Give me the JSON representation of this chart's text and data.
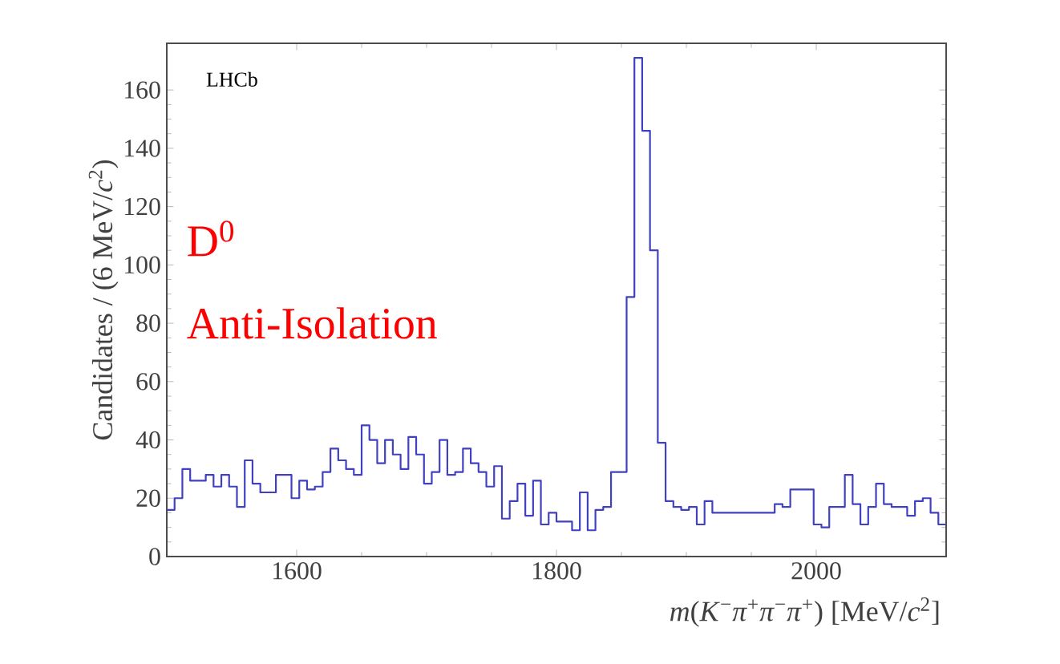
{
  "chart_data": {
    "type": "histogram",
    "xlabel": "*m*(*K*$^{−}$*π*$^{+}$*π*$^{−}$*π*$^{+}$) [MeV/*c*$^{2}$]",
    "ylabel": "Candidates / (6 MeV/*c*$^{2}$)",
    "annotations": [
      "LHCb",
      "D$^{0}$",
      "Anti-Isolation"
    ],
    "color": "#4040c0",
    "bins": [
      1500,
      1506,
      1512,
      1518,
      1524,
      1530,
      1536,
      1542,
      1548,
      1554,
      1560,
      1566,
      1572,
      1578,
      1584,
      1590,
      1596,
      1602,
      1608,
      1614,
      1620,
      1626,
      1632,
      1638,
      1644,
      1650,
      1656,
      1662,
      1668,
      1674,
      1680,
      1686,
      1692,
      1698,
      1704,
      1710,
      1716,
      1722,
      1728,
      1734,
      1740,
      1746,
      1752,
      1758,
      1764,
      1770,
      1776,
      1782,
      1788,
      1794,
      1800,
      1806,
      1812,
      1818,
      1824,
      1830,
      1836,
      1842,
      1848,
      1854,
      1860,
      1866,
      1872,
      1878,
      1884,
      1890,
      1896,
      1902,
      1908,
      1914,
      1920,
      1926,
      1932,
      1938,
      1944,
      1950,
      1956,
      1962,
      1968,
      1974,
      1980,
      1986,
      1992,
      1998,
      2004,
      2010,
      2016,
      2022,
      2028,
      2034,
      2040,
      2046,
      2052,
      2058,
      2064,
      2070,
      2076,
      2082,
      2088,
      2094,
      2100
    ],
    "values": [
      16,
      20,
      30,
      26,
      26,
      28,
      24,
      28,
      24,
      17,
      33,
      25,
      22,
      22,
      28,
      28,
      20,
      26,
      23,
      24,
      29,
      37,
      33,
      30,
      28,
      45,
      40,
      32,
      40,
      35,
      30,
      41,
      35,
      25,
      29,
      40,
      28,
      29,
      37,
      32,
      29,
      24,
      31,
      13,
      19,
      25,
      14,
      26,
      11,
      15,
      12,
      12,
      9,
      22,
      9,
      16,
      17,
      29,
      29,
      89,
      171,
      146,
      105,
      39,
      19,
      17,
      16,
      17,
      11,
      19,
      15,
      15,
      15,
      15,
      15,
      15,
      15,
      15,
      18,
      17,
      23,
      23,
      23,
      11,
      10,
      17,
      17,
      28,
      18,
      11,
      17,
      25,
      18,
      17,
      17,
      14,
      19,
      20,
      15,
      11
    ],
    "xlim": [
      1500,
      2100
    ],
    "ylim": [
      0,
      176
    ],
    "xticks": [
      1600,
      1800,
      2000
    ],
    "yticks": [
      0,
      20,
      40,
      60,
      80,
      100,
      120,
      140,
      160
    ],
    "grid": false
  }
}
